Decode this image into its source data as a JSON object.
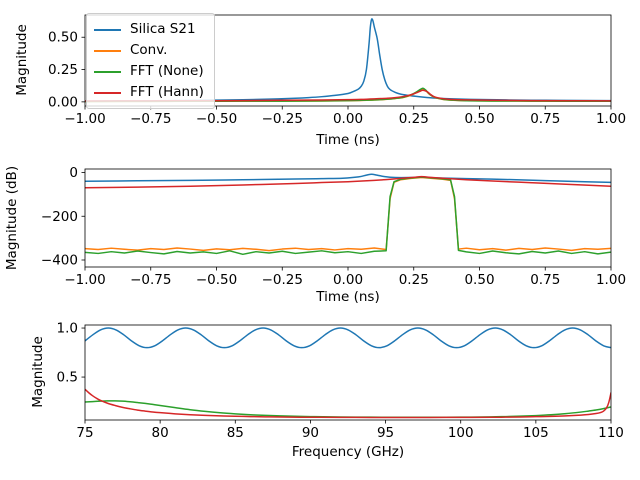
{
  "colors": {
    "blue": "#1f77b4",
    "orange": "#ff7f0e",
    "green": "#2ca02c",
    "red": "#d62728",
    "axis": "#000000",
    "legend_border": "#cccccc",
    "background": "#ffffff"
  },
  "legend": {
    "position": "upper left",
    "items": [
      {
        "label": "Silica S21",
        "color": "#1f77b4"
      },
      {
        "label": "Conv.",
        "color": "#ff7f0e"
      },
      {
        "label": "FFT (None)",
        "color": "#2ca02c"
      },
      {
        "label": "FFT (Hann)",
        "color": "#d62728"
      }
    ]
  },
  "chart_data": [
    {
      "type": "line",
      "xlabel": "Time (ns)",
      "ylabel": "Magnitude",
      "xlim": [
        -1,
        1
      ],
      "ylim": [
        -0.032,
        0.672
      ],
      "grid": false,
      "xticks": {
        "values": [
          -1,
          -0.75,
          -0.5,
          -0.25,
          0,
          0.25,
          0.5,
          0.75,
          1
        ],
        "labels": [
          "−1.00",
          "−0.75",
          "−0.50",
          "−0.25",
          "0.00",
          "0.25",
          "0.50",
          "0.75",
          "1.00"
        ]
      },
      "yticks": {
        "values": [
          0,
          0.25,
          0.5
        ],
        "labels": [
          "0.00",
          "0.25",
          "0.50"
        ]
      },
      "series": [
        {
          "name": "Silica S21",
          "color": "#1f77b4",
          "smooth": true,
          "x": [
            -1,
            -0.8,
            -0.6,
            -0.5,
            -0.4,
            -0.3,
            -0.2,
            -0.15,
            -0.1,
            -0.05,
            0,
            0.02,
            0.04,
            0.05,
            0.06,
            0.07,
            0.08,
            0.085,
            0.09,
            0.095,
            0.1,
            0.11,
            0.115,
            0.12,
            0.13,
            0.14,
            0.15,
            0.16,
            0.18,
            0.2,
            0.23,
            0.26,
            0.3,
            0.35,
            0.4,
            0.5,
            0.6,
            0.75,
            0.9,
            1
          ],
          "y": [
            0.006,
            0.008,
            0.011,
            0.013,
            0.016,
            0.021,
            0.028,
            0.033,
            0.04,
            0.05,
            0.065,
            0.08,
            0.1,
            0.12,
            0.16,
            0.25,
            0.45,
            0.58,
            0.64,
            0.625,
            0.58,
            0.5,
            0.44,
            0.37,
            0.25,
            0.17,
            0.12,
            0.095,
            0.073,
            0.06,
            0.05,
            0.042,
            0.034,
            0.027,
            0.023,
            0.018,
            0.015,
            0.012,
            0.011,
            0.01
          ]
        },
        {
          "name": "Conv.",
          "color": "#ff7f0e",
          "smooth": true,
          "x": [
            -1,
            -0.75,
            -0.5,
            -0.25,
            -0.1,
            0,
            0.05,
            0.1,
            0.15,
            0.18,
            0.21,
            0.24,
            0.26,
            0.275,
            0.285,
            0.295,
            0.31,
            0.33,
            0.36,
            0.4,
            0.45,
            0.55,
            0.7,
            0.85,
            1
          ],
          "y": [
            0.003,
            0.004,
            0.005,
            0.006,
            0.007,
            0.009,
            0.011,
            0.014,
            0.02,
            0.026,
            0.034,
            0.052,
            0.072,
            0.092,
            0.1,
            0.088,
            0.058,
            0.034,
            0.019,
            0.012,
            0.009,
            0.007,
            0.006,
            0.005,
            0.005
          ]
        },
        {
          "name": "FFT (None)",
          "color": "#2ca02c",
          "smooth": true,
          "x": [
            -1,
            -0.75,
            -0.5,
            -0.25,
            -0.1,
            0,
            0.05,
            0.1,
            0.15,
            0.18,
            0.21,
            0.24,
            0.26,
            0.275,
            0.285,
            0.295,
            0.31,
            0.33,
            0.36,
            0.4,
            0.45,
            0.55,
            0.7,
            0.85,
            1
          ],
          "y": [
            0.003,
            0.004,
            0.005,
            0.006,
            0.008,
            0.01,
            0.012,
            0.015,
            0.021,
            0.027,
            0.036,
            0.055,
            0.076,
            0.096,
            0.105,
            0.092,
            0.06,
            0.036,
            0.02,
            0.013,
            0.009,
            0.007,
            0.006,
            0.005,
            0.005
          ]
        },
        {
          "name": "FFT (Hann)",
          "color": "#d62728",
          "smooth": true,
          "x": [
            -1,
            -0.75,
            -0.5,
            -0.25,
            -0.1,
            0,
            0.05,
            0.1,
            0.15,
            0.18,
            0.21,
            0.24,
            0.26,
            0.275,
            0.285,
            0.3,
            0.315,
            0.33,
            0.36,
            0.4,
            0.45,
            0.55,
            0.7,
            0.85,
            1
          ],
          "y": [
            0.007,
            0.008,
            0.009,
            0.012,
            0.014,
            0.017,
            0.019,
            0.023,
            0.028,
            0.033,
            0.041,
            0.055,
            0.07,
            0.083,
            0.09,
            0.08,
            0.056,
            0.038,
            0.025,
            0.018,
            0.015,
            0.012,
            0.01,
            0.009,
            0.008
          ]
        }
      ]
    },
    {
      "type": "line",
      "xlabel": "Time (ns)",
      "ylabel": "Magnitude (dB)",
      "xlim": [
        -1,
        1
      ],
      "ylim": [
        -432,
        16
      ],
      "grid": false,
      "xticks": {
        "values": [
          -1,
          -0.75,
          -0.5,
          -0.25,
          0,
          0.25,
          0.5,
          0.75,
          1
        ],
        "labels": [
          "−1.00",
          "−0.75",
          "−0.50",
          "−0.25",
          "0.00",
          "0.25",
          "0.50",
          "0.75",
          "1.00"
        ]
      },
      "yticks": {
        "values": [
          0,
          -200,
          -400
        ],
        "labels": [
          "0",
          "−200",
          "−400"
        ]
      },
      "series": [
        {
          "name": "Silica S21",
          "color": "#1f77b4",
          "smooth": true,
          "x": [
            -1,
            -0.8,
            -0.6,
            -0.4,
            -0.2,
            -0.1,
            -0.02,
            0.04,
            0.07,
            0.09,
            0.11,
            0.14,
            0.18,
            0.24,
            0.28,
            0.35,
            0.45,
            0.6,
            0.75,
            0.9,
            1
          ],
          "y": [
            -40,
            -38,
            -36,
            -33,
            -30,
            -28,
            -26,
            -20,
            -12,
            -8,
            -12,
            -19,
            -23,
            -23,
            -22,
            -25,
            -28,
            -32,
            -37,
            -42,
            -45
          ]
        },
        {
          "name": "Conv.",
          "color": "#ff7f0e",
          "smooth": false,
          "x": [
            -1,
            -0.95,
            -0.9,
            -0.85,
            -0.8,
            -0.75,
            -0.7,
            -0.65,
            -0.6,
            -0.55,
            -0.5,
            -0.45,
            -0.4,
            -0.35,
            -0.3,
            -0.25,
            -0.2,
            -0.15,
            -0.1,
            -0.05,
            0,
            0.05,
            0.1,
            0.145,
            0.16,
            0.175,
            0.2,
            0.24,
            0.28,
            0.32,
            0.36,
            0.39,
            0.405,
            0.42,
            0.45,
            0.5,
            0.55,
            0.6,
            0.65,
            0.7,
            0.75,
            0.8,
            0.85,
            0.9,
            0.95,
            1
          ],
          "y": [
            -348,
            -352,
            -346,
            -351,
            -355,
            -348,
            -352,
            -345,
            -350,
            -356,
            -349,
            -353,
            -347,
            -351,
            -357,
            -350,
            -346,
            -352,
            -348,
            -354,
            -348,
            -351,
            -345,
            -352,
            -120,
            -45,
            -33,
            -27,
            -23,
            -27,
            -31,
            -36,
            -120,
            -350,
            -346,
            -353,
            -348,
            -355,
            -347,
            -352,
            -345,
            -350,
            -356,
            -348,
            -351,
            -347
          ]
        },
        {
          "name": "FFT (None)",
          "color": "#2ca02c",
          "smooth": false,
          "x": [
            -1,
            -0.95,
            -0.9,
            -0.85,
            -0.8,
            -0.75,
            -0.7,
            -0.65,
            -0.6,
            -0.55,
            -0.5,
            -0.45,
            -0.4,
            -0.35,
            -0.3,
            -0.25,
            -0.2,
            -0.15,
            -0.1,
            -0.05,
            0,
            0.05,
            0.1,
            0.145,
            0.16,
            0.175,
            0.2,
            0.24,
            0.28,
            0.32,
            0.36,
            0.39,
            0.405,
            0.42,
            0.45,
            0.5,
            0.55,
            0.6,
            0.65,
            0.7,
            0.75,
            0.8,
            0.85,
            0.9,
            0.95,
            1
          ],
          "y": [
            -365,
            -370,
            -362,
            -368,
            -359,
            -366,
            -372,
            -361,
            -368,
            -363,
            -370,
            -358,
            -374,
            -362,
            -368,
            -360,
            -370,
            -364,
            -358,
            -367,
            -362,
            -370,
            -360,
            -358,
            -110,
            -42,
            -31,
            -25,
            -21,
            -25,
            -29,
            -34,
            -110,
            -356,
            -363,
            -370,
            -359,
            -367,
            -372,
            -361,
            -368,
            -359,
            -370,
            -362,
            -372,
            -364
          ]
        },
        {
          "name": "FFT (Hann)",
          "color": "#d62728",
          "smooth": true,
          "x": [
            -1,
            -0.8,
            -0.6,
            -0.4,
            -0.2,
            -0.1,
            0,
            0.1,
            0.15,
            0.2,
            0.25,
            0.28,
            0.32,
            0.38,
            0.45,
            0.55,
            0.7,
            0.85,
            1
          ],
          "y": [
            -70,
            -67,
            -63,
            -57,
            -50,
            -46,
            -42,
            -36,
            -32,
            -27,
            -22,
            -19,
            -23,
            -28,
            -33,
            -39,
            -47,
            -55,
            -63
          ]
        }
      ]
    },
    {
      "type": "line",
      "xlabel": "Frequency (GHz)",
      "ylabel": "Magnitude",
      "xlim": [
        75,
        110
      ],
      "ylim": [
        0.062,
        1.031
      ],
      "grid": false,
      "xticks": {
        "values": [
          75,
          80,
          85,
          90,
          95,
          100,
          105,
          110
        ],
        "labels": [
          "75",
          "80",
          "85",
          "90",
          "95",
          "100",
          "105",
          "110"
        ]
      },
      "yticks": {
        "values": [
          0.5,
          1
        ],
        "labels": [
          "0.5",
          "1.0"
        ]
      },
      "series": [
        {
          "name": "Silica S21",
          "color": "#1f77b4",
          "smooth": true,
          "x": [
            75,
            75.52,
            76.03,
            76.55,
            77.06,
            77.58,
            78.09,
            78.61,
            79.12,
            79.64,
            80.15,
            80.67,
            81.18,
            81.7,
            82.21,
            82.73,
            83.24,
            83.76,
            84.27,
            84.79,
            85.3,
            85.82,
            86.33,
            86.85,
            87.36,
            87.88,
            88.39,
            88.91,
            89.42,
            89.94,
            90.45,
            90.97,
            91.48,
            92.0,
            92.51,
            93.03,
            93.54,
            94.06,
            94.57,
            95.09,
            95.6,
            96.12,
            96.63,
            97.15,
            97.66,
            98.18,
            98.69,
            99.21,
            99.72,
            100.24,
            100.75,
            101.27,
            101.78,
            102.3,
            102.81,
            103.33,
            103.84,
            104.36,
            104.87,
            105.39,
            105.9,
            106.42,
            106.93,
            107.45,
            107.96,
            108.48,
            108.99,
            109.51,
            110.0
          ],
          "y": [
            0.869,
            0.931,
            0.981,
            1.0,
            0.981,
            0.931,
            0.869,
            0.819,
            0.8,
            0.819,
            0.869,
            0.931,
            0.981,
            1.0,
            0.981,
            0.931,
            0.869,
            0.819,
            0.8,
            0.819,
            0.869,
            0.931,
            0.981,
            1.0,
            0.981,
            0.931,
            0.869,
            0.819,
            0.8,
            0.819,
            0.869,
            0.931,
            0.981,
            1.0,
            0.981,
            0.931,
            0.869,
            0.819,
            0.8,
            0.819,
            0.869,
            0.931,
            0.981,
            1.0,
            0.981,
            0.931,
            0.869,
            0.819,
            0.8,
            0.819,
            0.869,
            0.931,
            0.981,
            1.0,
            0.981,
            0.931,
            0.869,
            0.819,
            0.8,
            0.819,
            0.869,
            0.931,
            0.981,
            1.0,
            0.981,
            0.931,
            0.869,
            0.819,
            0.8
          ]
        },
        {
          "name": "FFT (None)",
          "color": "#2ca02c",
          "smooth": true,
          "x": [
            75,
            75.5,
            76,
            76.5,
            77,
            77.5,
            78,
            78.5,
            79,
            79.5,
            80,
            81,
            82,
            83,
            84,
            85,
            86,
            87,
            88,
            90,
            92,
            94,
            96,
            98,
            100,
            102,
            103,
            104,
            105,
            106,
            107,
            108,
            108.5,
            109,
            109.5,
            110
          ],
          "y": [
            0.245,
            0.25,
            0.254,
            0.257,
            0.257,
            0.254,
            0.248,
            0.24,
            0.231,
            0.221,
            0.21,
            0.188,
            0.167,
            0.15,
            0.136,
            0.125,
            0.116,
            0.109,
            0.104,
            0.097,
            0.093,
            0.091,
            0.09,
            0.09,
            0.091,
            0.094,
            0.097,
            0.101,
            0.107,
            0.115,
            0.127,
            0.143,
            0.153,
            0.164,
            0.178,
            0.195
          ]
        },
        {
          "name": "FFT (Hann)",
          "color": "#d62728",
          "smooth": true,
          "x": [
            75,
            75.25,
            75.5,
            75.75,
            76,
            76.5,
            77,
            77.5,
            78,
            78.5,
            79,
            79.5,
            80,
            81,
            82,
            83,
            84,
            85,
            86,
            87,
            88,
            90,
            92,
            94,
            96,
            98,
            100,
            102,
            103,
            104,
            105,
            106,
            107,
            108,
            108.5,
            109,
            109.3,
            109.5,
            109.7,
            109.85,
            110
          ],
          "y": [
            0.375,
            0.34,
            0.31,
            0.285,
            0.264,
            0.233,
            0.21,
            0.191,
            0.176,
            0.163,
            0.153,
            0.144,
            0.137,
            0.125,
            0.116,
            0.109,
            0.104,
            0.1,
            0.097,
            0.094,
            0.092,
            0.09,
            0.089,
            0.088,
            0.088,
            0.088,
            0.089,
            0.09,
            0.091,
            0.093,
            0.096,
            0.099,
            0.104,
            0.112,
            0.118,
            0.128,
            0.138,
            0.152,
            0.185,
            0.24,
            0.34
          ]
        }
      ]
    }
  ]
}
